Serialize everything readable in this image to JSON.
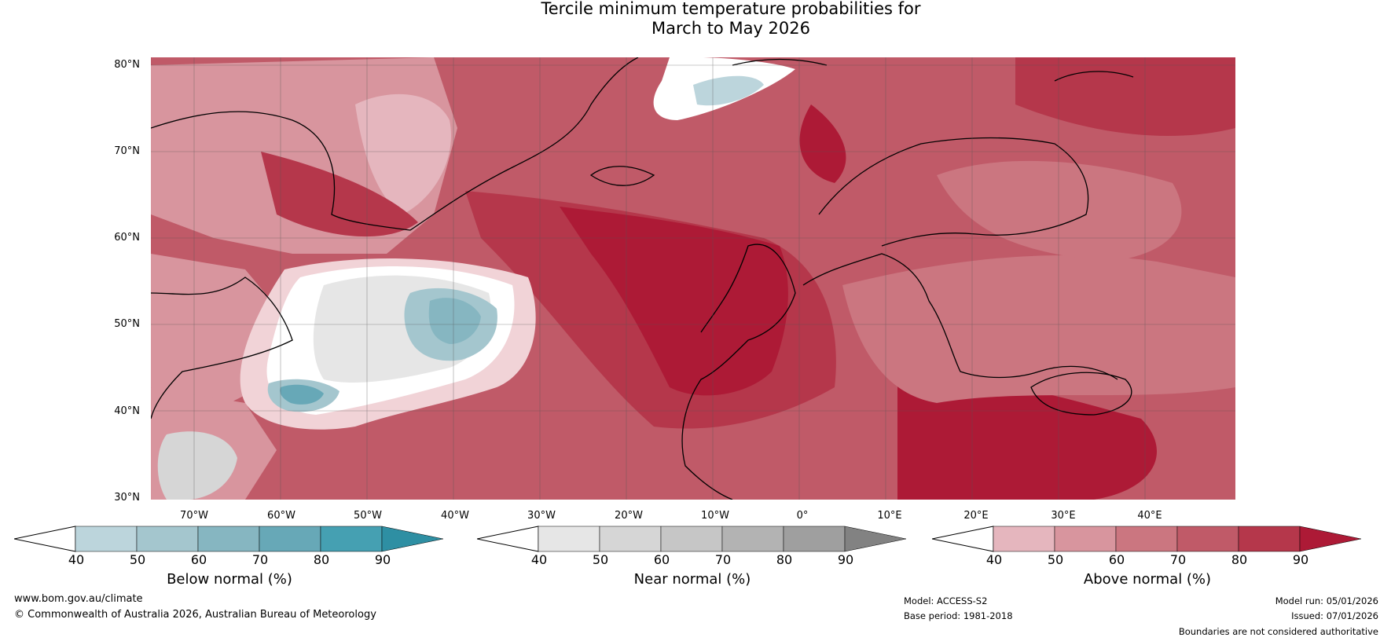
{
  "title": {
    "line1": "Tercile minimum temperature probabilities for",
    "line2": "March to May 2026"
  },
  "map": {
    "lat_labels": [
      "80°N",
      "70°N",
      "60°N",
      "50°N",
      "40°N",
      "30°N"
    ],
    "lon_labels": [
      "70°W",
      "60°W",
      "50°W",
      "40°W",
      "30°W",
      "20°W",
      "10°W",
      "0°",
      "10°E",
      "20°E",
      "30°E",
      "40°E"
    ]
  },
  "colorbars": [
    {
      "label": "Below normal (%)",
      "ticks": [
        "40",
        "50",
        "60",
        "70",
        "80",
        "90"
      ],
      "colors": [
        "#bcd5dc",
        "#a4c6ce",
        "#86b6c1",
        "#67a8b7",
        "#45a0b2",
        "#2e8fa3"
      ]
    },
    {
      "label": "Near normal (%)",
      "ticks": [
        "40",
        "50",
        "60",
        "70",
        "80",
        "90"
      ],
      "colors": [
        "#e6e6e6",
        "#d6d6d6",
        "#c6c6c6",
        "#b3b3b3",
        "#9f9f9f",
        "#828282"
      ]
    },
    {
      "label": "Above normal (%)",
      "ticks": [
        "40",
        "50",
        "60",
        "70",
        "80",
        "90"
      ],
      "colors": [
        "#e5b6be",
        "#d8959e",
        "#cb7680",
        "#c05a68",
        "#b5374b",
        "#ad1a36"
      ]
    }
  ],
  "footer": {
    "website": "www.bom.gov.au/climate",
    "copyright": "© Commonwealth of Australia 2026, Australian Bureau of Meteorology",
    "model": "Model: ACCESS-S2",
    "base_period": "Base period: 1981-2018",
    "model_run": "Model run: 05/01/2026",
    "issued": "Issued: 07/01/2026",
    "disclaimer": "Boundaries are not considered authoritative"
  }
}
